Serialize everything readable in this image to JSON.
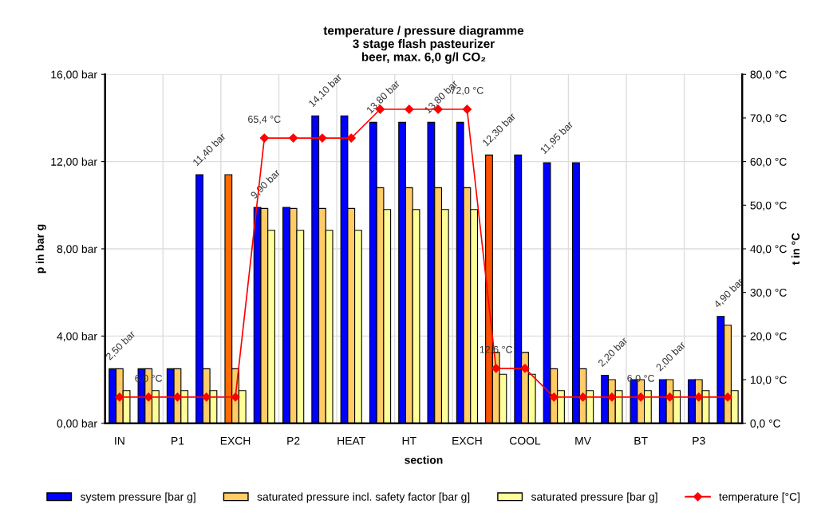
{
  "chart_data": {
    "type": "bar",
    "title": "temperature / pressure diagramme\n3 stage flash pasteurizer\nbeer, max. 6,0 g/l CO₂",
    "xlabel": "section",
    "ylabel": "p in bar g",
    "y2label": "t in °C",
    "categories": [
      "IN",
      null,
      "P1",
      null,
      "EXCH",
      null,
      "P2",
      null,
      "HEAT",
      null,
      "HT",
      null,
      "EXCH",
      null,
      "COOL",
      null,
      "MV",
      null,
      "BT",
      null,
      "P3",
      null
    ],
    "series": [
      {
        "name": "system pressure [bar g]",
        "color": "#0000ff",
        "colors": [
          "#0000ff",
          "#0000ff",
          "#0000ff",
          "#0000ff",
          "#ff6a00",
          "#0000ff",
          "#0000ff",
          "#0000ff",
          "#0000ff",
          "#0000ff",
          "#0000ff",
          "#0000ff",
          "#0000ff",
          "#ff5000",
          "#0000ff",
          "#0000ff",
          "#0000ff",
          "#0000ff",
          "#0000ff",
          "#0000ff",
          "#0000ff",
          "#0000ff"
        ],
        "values": [
          2.5,
          2.5,
          2.5,
          11.4,
          11.4,
          9.9,
          9.9,
          14.1,
          14.1,
          13.8,
          13.8,
          13.8,
          13.8,
          12.3,
          12.3,
          11.95,
          11.95,
          2.2,
          2.0,
          2.0,
          2.0,
          4.9
        ],
        "value_labels": [
          "2,50 bar",
          null,
          null,
          "11,40 bar",
          null,
          "9,90 bar",
          null,
          "14,10 bar",
          null,
          "13,80 bar",
          null,
          "13,80 bar",
          null,
          "12,30 bar",
          null,
          "11,95 bar",
          null,
          "2,20 bar",
          null,
          "2,00 bar",
          null,
          "4,90 bar"
        ]
      },
      {
        "name": "saturated pressure incl. safety factor [bar g]",
        "color": "#ffcc66",
        "values": [
          2.5,
          2.5,
          2.5,
          2.5,
          2.5,
          9.85,
          9.85,
          9.85,
          9.85,
          10.8,
          10.8,
          10.8,
          10.8,
          3.25,
          3.25,
          2.5,
          2.5,
          2.0,
          2.0,
          2.0,
          2.0,
          4.5
        ]
      },
      {
        "name": "saturated pressure [bar g]",
        "color": "#ffff99",
        "values": [
          1.5,
          1.5,
          1.5,
          1.5,
          1.5,
          8.85,
          8.85,
          8.85,
          8.85,
          9.8,
          9.8,
          9.8,
          9.8,
          2.25,
          2.25,
          1.5,
          1.5,
          1.5,
          1.5,
          1.5,
          1.5,
          1.5
        ]
      },
      {
        "name": "temperature [°C]",
        "type": "line",
        "axis": "y2",
        "color": "#ff0000",
        "marker": "diamond",
        "line_style": "solid",
        "values": [
          6.0,
          6.0,
          6.0,
          6.0,
          6.0,
          65.4,
          65.4,
          65.4,
          65.4,
          72.0,
          72.0,
          72.0,
          72.0,
          12.6,
          12.6,
          6.0,
          6.0,
          6.0,
          6.0,
          6.0,
          6.0,
          6.0
        ],
        "value_labels": [
          null,
          "6,0 °C",
          null,
          null,
          null,
          "65,4 °C",
          null,
          null,
          null,
          null,
          null,
          null,
          "72,0 °C",
          "12,6 °C",
          null,
          null,
          null,
          null,
          "6,0 °C",
          null,
          null,
          null
        ]
      }
    ],
    "ylim": [
      0,
      16
    ],
    "yticks": [
      {
        "value": 0,
        "label": "0,00 bar"
      },
      {
        "value": 4,
        "label": "4,00 bar"
      },
      {
        "value": 8,
        "label": "8,00 bar"
      },
      {
        "value": 12,
        "label": "12,00 bar"
      },
      {
        "value": 16,
        "label": "16,00 bar"
      }
    ],
    "y2lim": [
      0,
      80
    ],
    "y2ticks": [
      {
        "value": 0,
        "label": "0,0 °C"
      },
      {
        "value": 10,
        "label": "10,0 °C"
      },
      {
        "value": 20,
        "label": "20,0 °C"
      },
      {
        "value": 30,
        "label": "30,0 °C"
      },
      {
        "value": 40,
        "label": "40,0 °C"
      },
      {
        "value": 50,
        "label": "50,0 °C"
      },
      {
        "value": 60,
        "label": "60,0 °C"
      },
      {
        "value": 70,
        "label": "70,0 °C"
      },
      {
        "value": 80,
        "label": "80,0 °C"
      }
    ],
    "grid": true,
    "legend": "bottom"
  }
}
